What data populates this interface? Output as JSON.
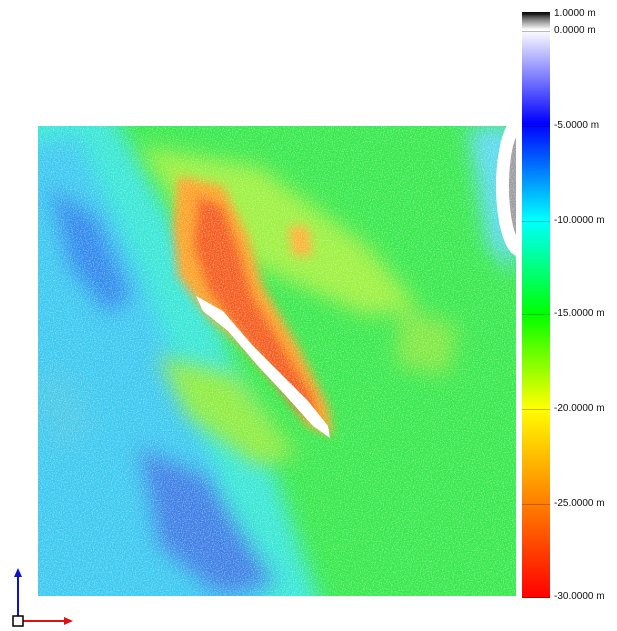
{
  "viewer": {
    "scalar_field_unit": "m"
  },
  "colorbar": {
    "ticks": [
      {
        "value": 1,
        "label": "1.0000 m"
      },
      {
        "value": 0,
        "label": "0.0000 m"
      },
      {
        "value": -5,
        "label": "-5.0000 m"
      },
      {
        "value": -10,
        "label": "-10.0000 m"
      },
      {
        "value": -15,
        "label": "-15.0000 m"
      },
      {
        "value": -20,
        "label": "-20.0000 m"
      },
      {
        "value": -25,
        "label": "-25.0000 m"
      },
      {
        "value": -30,
        "label": "-30.0000 m"
      }
    ],
    "colors": {
      "black": "#000000",
      "white": "#ffffff",
      "blue": "#0000ff",
      "cyan": "#00ffff",
      "green": "#00ff00",
      "yellow": "#ffff00",
      "red": "#ff0000"
    }
  },
  "map": {
    "description_colors": {
      "shallow_blue": "#2a8cf0",
      "mid_cyan": "#2ee8e8",
      "green": "#22e63c",
      "yellow_green": "#b8f03a",
      "orange": "#ff8c1a",
      "red": "#f24a1a",
      "white_gap": "#ffffff"
    }
  },
  "axis_gizmo": {
    "x_color": "#e01010",
    "y_color": "#1010d0",
    "origin_color": "#000000"
  }
}
